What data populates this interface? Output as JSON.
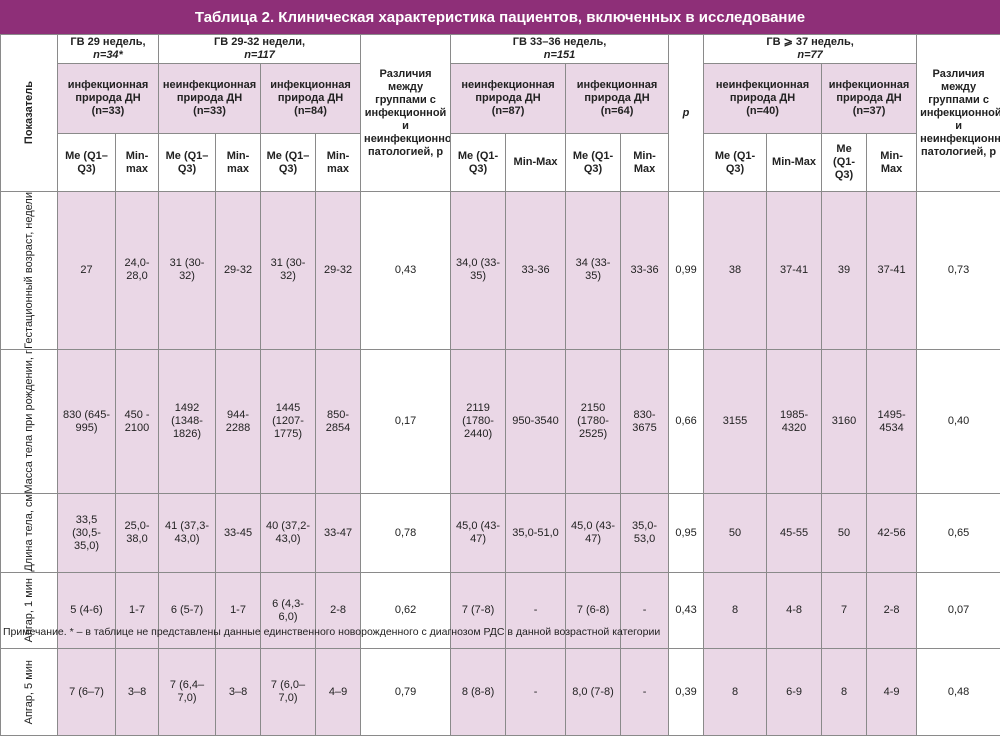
{
  "title": "Таблица 2. Клиническая характеристика пациентов, включенных в исследование",
  "header": {
    "indicator": "Показатель",
    "groups": {
      "gv29": [
        "ГВ 29 недель,",
        "n=34*"
      ],
      "gv29_32": [
        "ГВ 29-32 недели,",
        "n=117"
      ],
      "gv33_36": [
        "ГВ 33–36 недель,",
        "n=151"
      ],
      "gv37": [
        "ГВ ⩾ 37 недель,",
        "n=77"
      ]
    },
    "diff1": "Различия между группами с инфекционной и неинфекционной патологией, p",
    "p_label": "p",
    "diff2": "Различия между группами с инфекционной и неинфекционной патологией, p",
    "sub": {
      "gv29_inf": [
        "инфекционная природа ДН",
        "(n=33)"
      ],
      "gv29_32_noninf": [
        "неинфекционная природа ДН",
        "(n=33)"
      ],
      "gv29_32_inf": [
        "инфекционная природа ДН",
        "(n=84)"
      ],
      "gv33_36_noninf": [
        "неинфекционная природа ДН",
        "(n=87)"
      ],
      "gv33_36_inf": [
        "инфекционная природа ДН",
        "(n=64)"
      ],
      "gv37_noninf": [
        "неинфекционная природа ДН",
        "(n=40)"
      ],
      "gv37_inf": [
        "инфекционная природа ДН",
        "(n=37)"
      ]
    },
    "stats": [
      "Me (Q1–Q3)",
      "Min-max",
      "Me (Q1–Q3)",
      "Min-max",
      "Me (Q1–Q3)",
      "Min-max",
      "Me (Q1-Q3)",
      "Min-Max",
      "Me (Q1-Q3)",
      "Min-Max",
      "Me (Q1-Q3)",
      "Min-Max",
      "Me (Q1-Q3)",
      "Min-Max"
    ]
  },
  "rows": [
    {
      "label": "Гестационный возраст, недели",
      "cells": [
        "27",
        "24,0-28,0",
        "31 (30-32)",
        "29-32",
        "31 (30-32)",
        "29-32",
        "0,43",
        "34,0 (33-35)",
        "33-36",
        "34 (33-35)",
        "33-36",
        "0,99",
        "38",
        "37-41",
        "39",
        "37-41",
        "0,73"
      ]
    },
    {
      "label": "Масса тела при рождении, г",
      "cells": [
        "830 (645-995)",
        "450 - 2100",
        "1492 (1348-1826)",
        "944-2288",
        "1445 (1207-1775)",
        "850-2854",
        "0,17",
        "2119 (1780-2440)",
        "950-3540",
        "2150 (1780-2525)",
        "830-3675",
        "0,66",
        "3155",
        "1985-4320",
        "3160",
        "1495-4534",
        "0,40"
      ]
    },
    {
      "label": "Длина тела, см",
      "cells": [
        "33,5 (30,5-35,0)",
        "25,0-38,0",
        "41 (37,3-43,0)",
        "33-45",
        "40 (37,2-43,0)",
        "33-47",
        "0,78",
        "45,0 (43-47)",
        "35,0-51,0",
        "45,0 (43-47)",
        "35,0-53,0",
        "0,95",
        "50",
        "45-55",
        "50",
        "42-56",
        "0,65"
      ]
    },
    {
      "label": "Апгар, 1 мин",
      "cells": [
        "5 (4-6)",
        "1-7",
        "6 (5-7)",
        "1-7",
        "6 (4,3-6,0)",
        "2-8",
        "0,62",
        "7 (7-8)",
        "-",
        "7 (6-8)",
        "-",
        "0,43",
        "8",
        "4-8",
        "7",
        "2-8",
        "0,07"
      ]
    },
    {
      "label": "Апгар, 5 мин",
      "cells": [
        "7 (6–7)",
        "3–8",
        "7 (6,4–7,0)",
        "3–8",
        "7 (6,0–7,0)",
        "4–9",
        "0,79",
        "8 (8-8)",
        "-",
        "8,0 (7-8)",
        "-",
        "0,39",
        "8",
        "6-9",
        "8",
        "4-9",
        "0,48"
      ]
    }
  ],
  "note": "Примечание. * –  в таблице не представлены данные единственного новорожденного с диагнозом РДС в данной возрастной категории"
}
